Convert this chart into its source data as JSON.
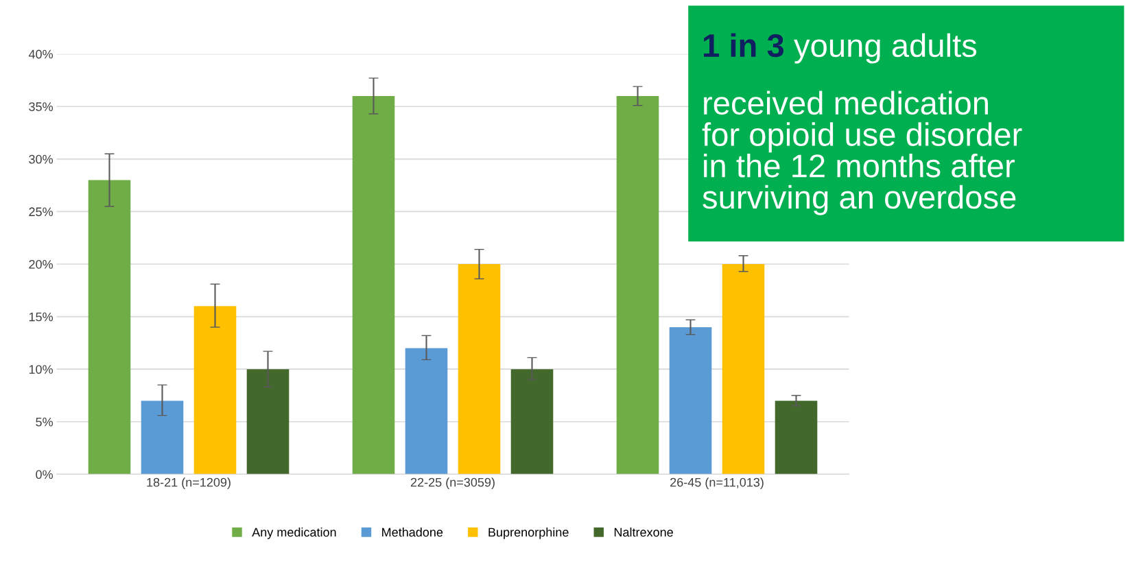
{
  "chart_data": {
    "type": "bar",
    "categories": [
      "18-21 (n=1209)",
      "22-25 (n=3059)",
      "26-45 (n=11,013)"
    ],
    "series": [
      {
        "name": "Any medication",
        "color": "#70ad47",
        "values": [
          28,
          36,
          36
        ],
        "errors": [
          [
            25.5,
            30.5
          ],
          [
            34.3,
            37.7
          ],
          [
            35.1,
            36.9
          ]
        ]
      },
      {
        "name": "Methadone",
        "color": "#5b9bd5",
        "values": [
          7,
          12,
          14
        ],
        "errors": [
          [
            5.6,
            8.5
          ],
          [
            10.9,
            13.2
          ],
          [
            13.3,
            14.7
          ]
        ]
      },
      {
        "name": "Buprenorphine",
        "color": "#ffc000",
        "values": [
          16,
          20,
          20
        ],
        "errors": [
          [
            14,
            18.1
          ],
          [
            18.6,
            21.4
          ],
          [
            19.3,
            20.8
          ]
        ]
      },
      {
        "name": "Naltrexone",
        "color": "#43682b",
        "values": [
          10,
          10,
          7
        ],
        "errors": [
          [
            8.3,
            11.7
          ],
          [
            9.0,
            11.1
          ],
          [
            6.5,
            7.5
          ]
        ]
      }
    ],
    "ylim": [
      0,
      40
    ],
    "yticks": [
      {
        "value": 0,
        "label": "0%"
      },
      {
        "value": 5,
        "label": "5%"
      },
      {
        "value": 10,
        "label": "10%"
      },
      {
        "value": 15,
        "label": "15%"
      },
      {
        "value": 20,
        "label": "20%"
      },
      {
        "value": 25,
        "label": "25%"
      },
      {
        "value": 30,
        "label": "30%"
      },
      {
        "value": 35,
        "label": "35%"
      },
      {
        "value": 40,
        "label": "40%"
      }
    ],
    "grid": "y",
    "legend": "bottom",
    "annotations": [
      "1 in 3",
      "young adults\nreceived medication\nfor opioid use disorder\nin the 12 months after\nsurviving an overdose"
    ]
  }
}
